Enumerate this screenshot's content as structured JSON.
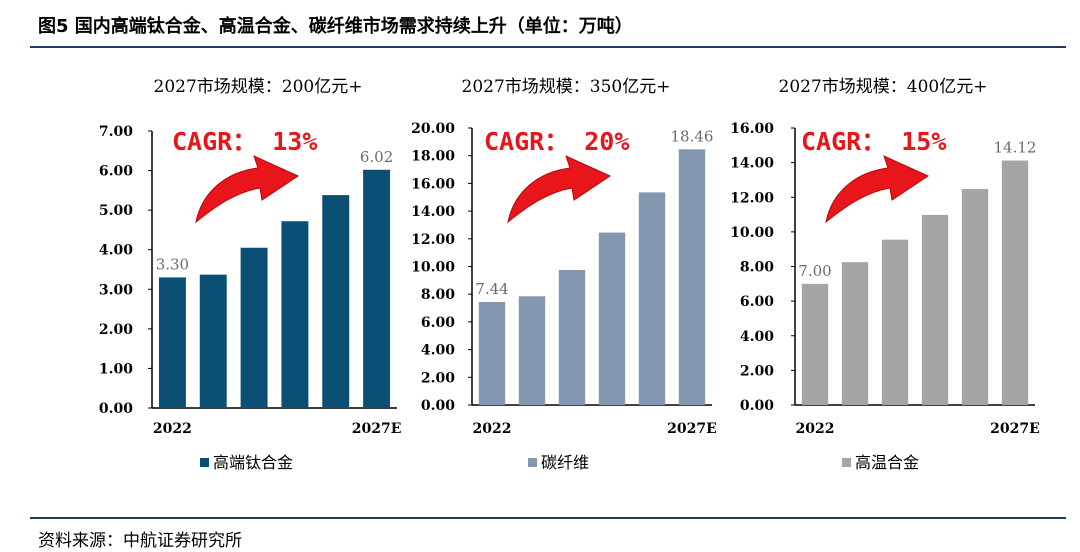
{
  "figure_title": "图5 国内高端钛合金、高温合金、碳纤维市场需求持续上升（单位：万吨）",
  "source": "资料来源：中航证券研究所",
  "chart_data": [
    {
      "type": "bar",
      "title": "2027市场规模：200亿元+",
      "cagr_label": "CAGR：  13%",
      "series": [
        {
          "name": "高端钛合金",
          "values": [
            3.3,
            3.37,
            4.05,
            4.72,
            5.38,
            6.02
          ],
          "color": "#0b4f75"
        }
      ],
      "data_labels": [
        "3.30",
        "",
        "",
        "",
        "",
        "6.02"
      ],
      "x_labels": [
        "2022",
        "",
        "",
        "",
        "",
        "2027E"
      ],
      "ylim": [
        0,
        7
      ],
      "y_ticks": [
        "0.00",
        "1.00",
        "2.00",
        "3.00",
        "4.00",
        "5.00",
        "6.00",
        "7.00"
      ]
    },
    {
      "type": "bar",
      "title": "2027市场规模：350亿元+",
      "cagr_label": "CAGR：  20%",
      "series": [
        {
          "name": "碳纤维",
          "values": [
            7.44,
            7.85,
            9.75,
            12.45,
            15.35,
            18.46
          ],
          "color": "#8497b0"
        }
      ],
      "data_labels": [
        "7.44",
        "",
        "",
        "",
        "",
        "18.46"
      ],
      "x_labels": [
        "2022",
        "",
        "",
        "",
        "",
        "2027E"
      ],
      "ylim": [
        0,
        20
      ],
      "y_ticks": [
        "0.00",
        "2.00",
        "4.00",
        "6.00",
        "8.00",
        "10.00",
        "12.00",
        "14.00",
        "16.00",
        "18.00",
        "20.00"
      ]
    },
    {
      "type": "bar",
      "title": "2027市场规模：400亿元+",
      "cagr_label": "CAGR：  15%",
      "series": [
        {
          "name": "高温合金",
          "values": [
            7.0,
            8.25,
            9.55,
            10.98,
            12.48,
            14.12
          ],
          "color": "#a5a5a5"
        }
      ],
      "data_labels": [
        "7.00",
        "",
        "",
        "",
        "",
        "14.12"
      ],
      "x_labels": [
        "2022",
        "",
        "",
        "",
        "",
        "2027E"
      ],
      "ylim": [
        0,
        16
      ],
      "y_ticks": [
        "0.00",
        "2.00",
        "4.00",
        "6.00",
        "8.00",
        "10.00",
        "12.00",
        "14.00",
        "16.00"
      ]
    }
  ]
}
